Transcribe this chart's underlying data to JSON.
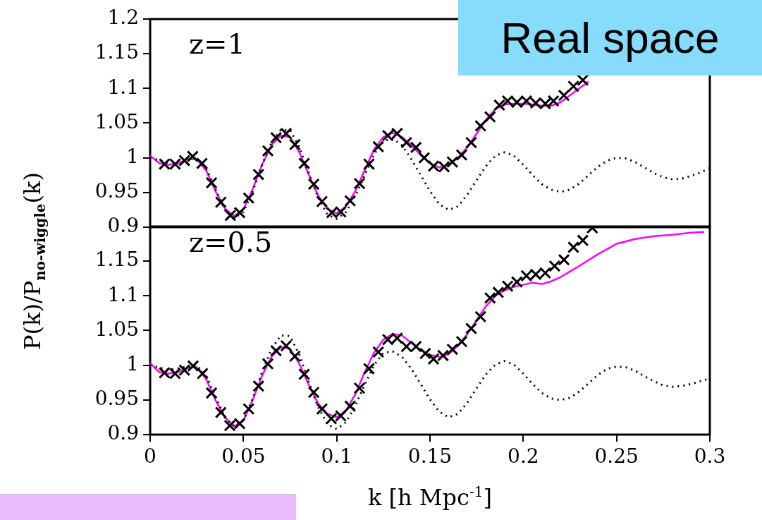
{
  "chart_data": [
    {
      "type": "line",
      "ylabel": "P(k)/P$_{no-wiggle}$(k)",
      "annotations": [
        "z=1",
        "Real space"
      ],
      "xlim": [
        0,
        0.3
      ],
      "xticks": [
        0,
        0.05,
        0.1,
        0.15,
        0.2,
        0.25,
        0.3
      ],
      "ylim": [
        0.9,
        1.2
      ],
      "yticks": [
        0.9,
        0.95,
        1,
        1.05,
        1.1,
        1.15,
        1.2
      ],
      "tick_labels": "y",
      "grid": false,
      "legend": false,
      "series": [
        {
          "type": "line",
          "color": "#000000",
          "marker": "none",
          "line_style": "dotted",
          "x": [
            0,
            0.01,
            0.02,
            0.025,
            0.03,
            0.035,
            0.04,
            0.045,
            0.05,
            0.055,
            0.06,
            0.065,
            0.07,
            0.075,
            0.08,
            0.085,
            0.09,
            0.095,
            0.1,
            0.105,
            0.11,
            0.115,
            0.12,
            0.125,
            0.13,
            0.135,
            0.14,
            0.145,
            0.15,
            0.155,
            0.16,
            0.165,
            0.17,
            0.175,
            0.18,
            0.185,
            0.19,
            0.195,
            0.2,
            0.205,
            0.21,
            0.215,
            0.22,
            0.225,
            0.23,
            0.235,
            0.24,
            0.245,
            0.25,
            0.255,
            0.26,
            0.265,
            0.27,
            0.275,
            0.28,
            0.285,
            0.29,
            0.295,
            0.3
          ],
          "values": [
            1.0,
            0.993,
            0.998,
            1.0,
            0.985,
            0.955,
            0.925,
            0.913,
            0.922,
            0.952,
            0.99,
            1.022,
            1.04,
            1.04,
            1.015,
            0.978,
            0.943,
            0.918,
            0.912,
            0.922,
            0.945,
            0.975,
            1.005,
            1.024,
            1.028,
            1.018,
            0.998,
            0.975,
            0.952,
            0.933,
            0.925,
            0.93,
            0.947,
            0.968,
            0.988,
            1.003,
            1.008,
            1.003,
            0.99,
            0.975,
            0.962,
            0.954,
            0.951,
            0.954,
            0.963,
            0.975,
            0.987,
            0.996,
            1.0,
            0.999,
            0.994,
            0.986,
            0.978,
            0.972,
            0.969,
            0.97,
            0.974,
            0.979,
            0.985
          ]
        },
        {
          "type": "line",
          "color": "#ff00ff",
          "marker": "none",
          "line_style": "solid",
          "x": [
            0,
            0.005,
            0.01,
            0.015,
            0.02,
            0.025,
            0.03,
            0.035,
            0.04,
            0.045,
            0.05,
            0.055,
            0.06,
            0.065,
            0.07,
            0.075,
            0.08,
            0.085,
            0.09,
            0.095,
            0.1,
            0.105,
            0.11,
            0.115,
            0.12,
            0.125,
            0.13,
            0.135,
            0.14,
            0.145,
            0.15,
            0.155,
            0.16,
            0.165,
            0.17,
            0.175,
            0.18,
            0.185,
            0.19,
            0.195,
            0.2,
            0.205,
            0.21,
            0.215,
            0.22,
            0.225,
            0.23,
            0.235
          ],
          "values": [
            1.003,
            0.992,
            0.99,
            0.992,
            0.998,
            0.998,
            0.982,
            0.952,
            0.927,
            0.916,
            0.926,
            0.955,
            0.99,
            1.018,
            1.032,
            1.03,
            1.008,
            0.976,
            0.946,
            0.926,
            0.92,
            0.93,
            0.952,
            0.982,
            1.012,
            1.03,
            1.036,
            1.03,
            1.018,
            1.004,
            0.992,
            0.986,
            0.99,
            1.0,
            1.015,
            1.035,
            1.055,
            1.07,
            1.077,
            1.078,
            1.078,
            1.077,
            1.075,
            1.075,
            1.08,
            1.09,
            1.1,
            1.11
          ]
        },
        {
          "type": "scatter",
          "color": "#000000",
          "marker": "cross",
          "x": [
            0.0077,
            0.0134,
            0.0184,
            0.0228,
            0.0278,
            0.0329,
            0.0379,
            0.043,
            0.048,
            0.0528,
            0.0581,
            0.0631,
            0.0675,
            0.0729,
            0.0776,
            0.0826,
            0.0877,
            0.0921,
            0.0974,
            0.1022,
            0.1072,
            0.1122,
            0.1173,
            0.1223,
            0.1274,
            0.1324,
            0.1374,
            0.1425,
            0.1469,
            0.1519,
            0.1576,
            0.162,
            0.167,
            0.1721,
            0.1771,
            0.1822,
            0.1872,
            0.1916,
            0.1966,
            0.2017,
            0.2067,
            0.2118,
            0.2162,
            0.2218,
            0.2269,
            0.2319
          ],
          "values": [
            0.991,
            0.991,
            0.996,
            1.002,
            0.992,
            0.964,
            0.936,
            0.917,
            0.921,
            0.942,
            0.976,
            1.01,
            1.029,
            1.035,
            1.019,
            0.992,
            0.962,
            0.937,
            0.921,
            0.922,
            0.938,
            0.963,
            0.991,
            1.016,
            1.032,
            1.035,
            1.022,
            1.015,
            1.0,
            0.988,
            0.987,
            0.994,
            1.004,
            1.022,
            1.046,
            1.059,
            1.076,
            1.082,
            1.08,
            1.082,
            1.079,
            1.078,
            1.082,
            1.09,
            1.103,
            1.112
          ]
        }
      ]
    },
    {
      "type": "line",
      "xlabel": "k [h Mpc$^{-1}$]",
      "annotations": [
        "z=0.5"
      ],
      "xlim": [
        0,
        0.3
      ],
      "xticks": [
        0,
        0.05,
        0.1,
        0.15,
        0.2,
        0.25,
        0.3
      ],
      "ylim": [
        0.9,
        1.2
      ],
      "yticks": [
        0.9,
        0.95,
        1,
        1.05,
        1.1,
        1.15
      ],
      "grid": false,
      "legend": false,
      "series": [
        {
          "type": "line",
          "color": "#000000",
          "marker": "none",
          "line_style": "dotted",
          "x": [
            0,
            0.01,
            0.02,
            0.025,
            0.03,
            0.035,
            0.04,
            0.045,
            0.05,
            0.055,
            0.06,
            0.065,
            0.07,
            0.075,
            0.08,
            0.085,
            0.09,
            0.095,
            0.1,
            0.105,
            0.11,
            0.115,
            0.12,
            0.125,
            0.13,
            0.135,
            0.14,
            0.145,
            0.15,
            0.155,
            0.16,
            0.165,
            0.17,
            0.175,
            0.18,
            0.185,
            0.19,
            0.195,
            0.2,
            0.205,
            0.21,
            0.215,
            0.22,
            0.225,
            0.23,
            0.235,
            0.24,
            0.245,
            0.25,
            0.255,
            0.26,
            0.265,
            0.27,
            0.275,
            0.28,
            0.285,
            0.29,
            0.295,
            0.3
          ],
          "values": [
            1.0,
            0.993,
            0.998,
            1.0,
            0.985,
            0.955,
            0.925,
            0.912,
            0.921,
            0.952,
            0.99,
            1.023,
            1.043,
            1.042,
            1.015,
            0.976,
            0.94,
            0.915,
            0.908,
            0.918,
            0.942,
            0.972,
            1.0,
            1.018,
            1.02,
            1.012,
            0.995,
            0.973,
            0.951,
            0.933,
            0.925,
            0.93,
            0.946,
            0.967,
            0.987,
            1.001,
            1.006,
            1.001,
            0.988,
            0.973,
            0.96,
            0.952,
            0.95,
            0.953,
            0.962,
            0.974,
            0.986,
            0.995,
            0.998,
            0.997,
            0.992,
            0.984,
            0.977,
            0.971,
            0.969,
            0.97,
            0.973,
            0.977,
            0.981
          ]
        },
        {
          "type": "line",
          "color": "#ff00ff",
          "marker": "none",
          "line_style": "solid",
          "x": [
            0,
            0.005,
            0.01,
            0.015,
            0.02,
            0.025,
            0.03,
            0.035,
            0.04,
            0.045,
            0.05,
            0.055,
            0.06,
            0.065,
            0.07,
            0.075,
            0.08,
            0.085,
            0.09,
            0.095,
            0.1,
            0.105,
            0.11,
            0.115,
            0.12,
            0.125,
            0.13,
            0.135,
            0.14,
            0.145,
            0.15,
            0.155,
            0.16,
            0.165,
            0.17,
            0.175,
            0.18,
            0.185,
            0.19,
            0.195,
            0.2,
            0.205,
            0.21,
            0.215,
            0.22,
            0.225,
            0.23,
            0.24,
            0.25,
            0.26,
            0.27,
            0.28,
            0.29,
            0.297
          ],
          "values": [
            1.003,
            0.99,
            0.988,
            0.99,
            0.996,
            0.997,
            0.98,
            0.95,
            0.925,
            0.912,
            0.92,
            0.95,
            0.985,
            1.012,
            1.026,
            1.024,
            1.002,
            0.972,
            0.945,
            0.93,
            0.925,
            0.935,
            0.958,
            0.99,
            1.018,
            1.037,
            1.045,
            1.043,
            1.032,
            1.022,
            1.015,
            1.012,
            1.016,
            1.028,
            1.045,
            1.065,
            1.085,
            1.1,
            1.108,
            1.113,
            1.116,
            1.119,
            1.117,
            1.121,
            1.127,
            1.135,
            1.143,
            1.16,
            1.175,
            1.182,
            1.186,
            1.188,
            1.191,
            1.192
          ]
        },
        {
          "type": "scatter",
          "color": "#000000",
          "marker": "cross",
          "x": [
            0.0077,
            0.0134,
            0.0184,
            0.023,
            0.0281,
            0.0329,
            0.0379,
            0.0427,
            0.048,
            0.0528,
            0.0581,
            0.0631,
            0.0675,
            0.0729,
            0.0776,
            0.0826,
            0.0877,
            0.0921,
            0.0971,
            0.1022,
            0.1072,
            0.1122,
            0.1173,
            0.1223,
            0.1274,
            0.1324,
            0.1374,
            0.1425,
            0.1475,
            0.1519,
            0.157,
            0.162,
            0.167,
            0.1721,
            0.1771,
            0.1822,
            0.1866,
            0.1916,
            0.1966,
            0.2017,
            0.2067,
            0.2118,
            0.2168,
            0.2218,
            0.2269,
            0.2319,
            0.237
          ],
          "values": [
            0.989,
            0.988,
            0.993,
            0.999,
            0.988,
            0.96,
            0.932,
            0.913,
            0.916,
            0.937,
            0.97,
            1.002,
            1.021,
            1.028,
            1.013,
            0.987,
            0.961,
            0.937,
            0.923,
            0.927,
            0.941,
            0.967,
            0.995,
            1.019,
            1.037,
            1.039,
            1.027,
            1.027,
            1.017,
            1.009,
            1.014,
            1.023,
            1.034,
            1.053,
            1.07,
            1.097,
            1.105,
            1.114,
            1.12,
            1.129,
            1.131,
            1.133,
            1.143,
            1.152,
            1.17,
            1.18,
            1.198
          ]
        }
      ]
    }
  ]
}
